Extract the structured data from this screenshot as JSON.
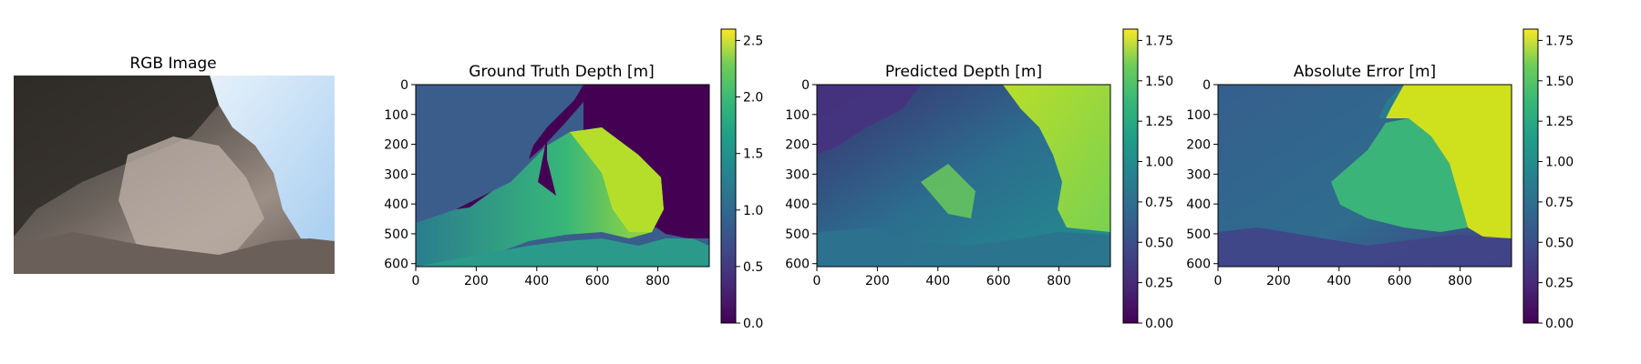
{
  "chart_data": [
    {
      "type": "image",
      "title": "RGB Image",
      "axes_visible": false,
      "description_colors": {
        "rock_dark": "#3a3531",
        "rock_light": "#b6a89f",
        "sky": "#cfe3f6"
      }
    },
    {
      "type": "heatmap",
      "title": "Ground Truth Depth [m]",
      "xlim": [
        0,
        970
      ],
      "ylim": [
        0,
        610
      ],
      "xticks": [
        0,
        200,
        400,
        600,
        800
      ],
      "yticks": [
        0,
        100,
        200,
        300,
        400,
        500,
        600
      ],
      "colormap": "viridis",
      "clim": [
        0.0,
        2.6
      ],
      "colorbar_ticks": [
        "0.0",
        "0.5",
        "1.0",
        "1.5",
        "2.0",
        "2.5"
      ],
      "colorbar_values": [
        0.0,
        0.5,
        1.0,
        1.5,
        2.0,
        2.5
      ]
    },
    {
      "type": "heatmap",
      "title": "Predicted Depth [m]",
      "xlim": [
        0,
        970
      ],
      "ylim": [
        0,
        610
      ],
      "xticks": [
        0,
        200,
        400,
        600,
        800
      ],
      "yticks": [
        0,
        100,
        200,
        300,
        400,
        500,
        600
      ],
      "colormap": "viridis",
      "clim": [
        0.0,
        1.82
      ],
      "colorbar_ticks": [
        "0.00",
        "0.25",
        "0.50",
        "0.75",
        "1.00",
        "1.25",
        "1.50",
        "1.75"
      ],
      "colorbar_values": [
        0.0,
        0.25,
        0.5,
        0.75,
        1.0,
        1.25,
        1.5,
        1.75
      ]
    },
    {
      "type": "heatmap",
      "title": "Absolute Error [m]",
      "xlim": [
        0,
        970
      ],
      "ylim": [
        0,
        610
      ],
      "xticks": [
        0,
        200,
        400,
        600,
        800
      ],
      "yticks": [
        0,
        100,
        200,
        300,
        400,
        500,
        600
      ],
      "colormap": "viridis",
      "clim": [
        0.0,
        1.82
      ],
      "colorbar_ticks": [
        "0.00",
        "0.25",
        "0.50",
        "0.75",
        "1.00",
        "1.25",
        "1.50",
        "1.75"
      ],
      "colorbar_values": [
        0.0,
        0.25,
        0.5,
        0.75,
        1.0,
        1.25,
        1.5,
        1.75
      ]
    }
  ],
  "colors": {
    "viridis_0": "#440154",
    "viridis_25": "#3b528b",
    "viridis_50": "#21918c",
    "viridis_75": "#5ec962",
    "viridis_100": "#fde725"
  }
}
